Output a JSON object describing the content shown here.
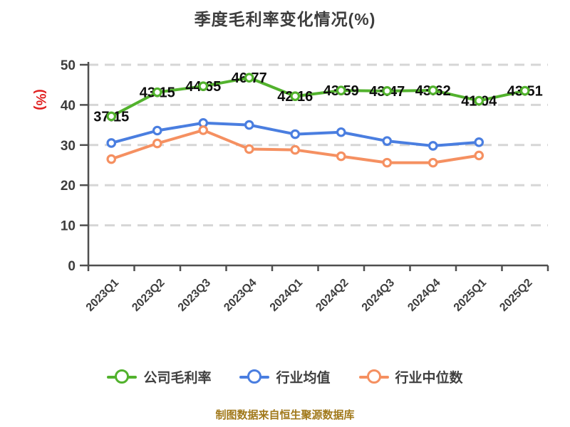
{
  "title": "季度毛利率变化情况(%)",
  "y_unit_label": "(%)",
  "footer": "制图数据来自恒生聚源数据库",
  "colors": {
    "title_text": "#3d3d3d",
    "axis_line": "#4f4f4f",
    "tick_label": "#3d3d3d",
    "gridline": "#d6d6d6",
    "unit_label_red": "#e01f1f",
    "data_label": "#0d0d0d",
    "footer_gold": "#a1791b",
    "series_green": "#52b22d",
    "series_blue": "#4a7ee0",
    "series_orange": "#f59061"
  },
  "chart_data": {
    "type": "line",
    "title": "季度毛利率变化情况(%)",
    "xlabel": "",
    "ylabel": "(%)",
    "ylim": [
      0,
      50
    ],
    "yticks": [
      0,
      10,
      20,
      30,
      40,
      50
    ],
    "grid": "horizontal-dashed",
    "legend_position": "bottom",
    "categories": [
      "2023Q1",
      "2023Q2",
      "2023Q3",
      "2023Q4",
      "2024Q1",
      "2024Q2",
      "2024Q3",
      "2024Q4",
      "2025Q1",
      "2025Q2"
    ],
    "series": [
      {
        "key": "company-gross-margin",
        "name": "公司毛利率",
        "color": "#52b22d",
        "show_labels": true,
        "values": [
          37.15,
          43.15,
          44.65,
          46.77,
          42.16,
          43.59,
          43.47,
          43.62,
          41.04,
          43.51
        ]
      },
      {
        "key": "industry-average",
        "name": "行业均值",
        "color": "#4a7ee0",
        "show_labels": false,
        "values": [
          30.5,
          33.6,
          35.5,
          35.0,
          32.7,
          33.2,
          31.0,
          29.8,
          30.7,
          null
        ]
      },
      {
        "key": "industry-median",
        "name": "行业中位数",
        "color": "#f59061",
        "show_labels": false,
        "values": [
          26.5,
          30.4,
          33.7,
          29.0,
          28.8,
          27.2,
          25.6,
          25.6,
          27.4,
          null
        ]
      }
    ]
  }
}
